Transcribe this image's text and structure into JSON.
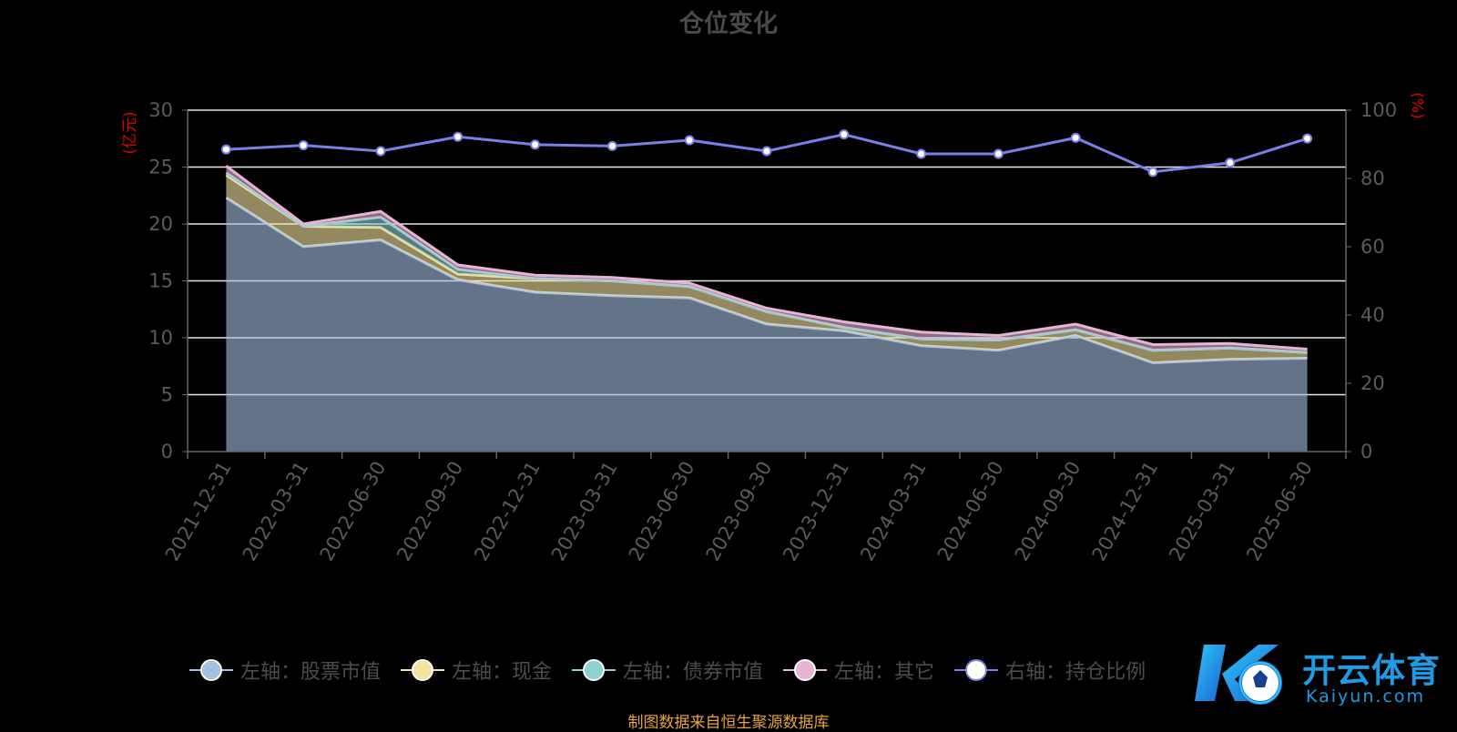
{
  "chart_data": {
    "type": "area",
    "title": "仓位变化",
    "left_axis_unit": "(亿元)",
    "right_axis_unit": "(%)",
    "ylim_left": [
      0,
      30
    ],
    "ylim_right": [
      0,
      100
    ],
    "yticks_left": [
      0,
      5,
      10,
      15,
      20,
      25,
      30
    ],
    "yticks_right": [
      0,
      20,
      40,
      60,
      80,
      100
    ],
    "grid": true,
    "stacked": true,
    "legend_position": "bottom",
    "categories": [
      "2021-12-31",
      "2022-03-31",
      "2022-06-30",
      "2022-09-30",
      "2022-12-31",
      "2023-03-31",
      "2023-06-30",
      "2023-09-30",
      "2023-12-31",
      "2024-03-31",
      "2024-06-30",
      "2024-09-30",
      "2024-12-31",
      "2025-03-31",
      "2025-06-30"
    ],
    "series": [
      {
        "name": "左轴：股票市值",
        "axis": "left",
        "kind": "area",
        "color": "#a6bfe2",
        "values": [
          22.3,
          18.0,
          18.6,
          15.1,
          14.0,
          13.7,
          13.5,
          11.2,
          10.6,
          9.3,
          8.9,
          10.2,
          7.8,
          8.1,
          8.2
        ]
      },
      {
        "name": "左轴：现金",
        "axis": "left",
        "kind": "area",
        "color": "#f5e3a0",
        "values": [
          2.0,
          1.8,
          1.1,
          0.5,
          1.2,
          1.3,
          1.0,
          1.1,
          0.3,
          0.6,
          0.9,
          0.5,
          1.1,
          1.0,
          0.5
        ]
      },
      {
        "name": "左轴：债券市值",
        "axis": "left",
        "kind": "area",
        "color": "#8fd1cf",
        "values": [
          0.2,
          0.0,
          0.9,
          0.4,
          0.0,
          0.0,
          0.0,
          0.0,
          0.0,
          0.0,
          0.0,
          0.0,
          0.0,
          0.0,
          0.0
        ]
      },
      {
        "name": "左轴：其它",
        "axis": "left",
        "kind": "area",
        "color": "#e7b4d8",
        "values": [
          0.6,
          0.2,
          0.5,
          0.4,
          0.3,
          0.3,
          0.3,
          0.3,
          0.5,
          0.6,
          0.4,
          0.5,
          0.5,
          0.4,
          0.3
        ]
      },
      {
        "name": "右轴：持仓比例",
        "axis": "right",
        "kind": "line",
        "color": "#7b7fe8",
        "values": [
          88.5,
          89.7,
          88.0,
          92.2,
          89.9,
          89.5,
          91.2,
          88.0,
          92.9,
          87.2,
          87.2,
          91.9,
          81.9,
          84.6,
          91.7
        ]
      }
    ]
  },
  "source_text": "制图数据来自恒生聚源数据库",
  "watermark": {
    "name": "开云体育",
    "url": "Kaiyun.com"
  }
}
